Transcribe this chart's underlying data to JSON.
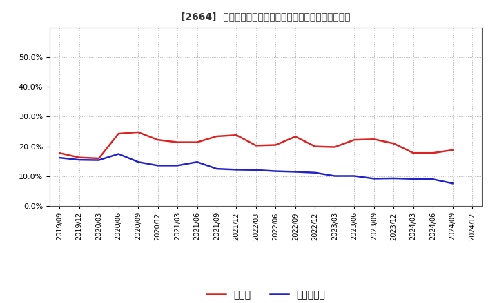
{
  "title": "[2664]  現須金、有利子負債の総資産に対する比率の推移",
  "x_labels": [
    "2019/09",
    "2019/12",
    "2020/03",
    "2020/06",
    "2020/09",
    "2020/12",
    "2021/03",
    "2021/06",
    "2021/09",
    "2021/12",
    "2022/03",
    "2022/06",
    "2022/09",
    "2022/12",
    "2023/03",
    "2023/06",
    "2023/09",
    "2023/12",
    "2024/03",
    "2024/06",
    "2024/09",
    "2024/12"
  ],
  "cash_ratio": [
    0.178,
    0.163,
    0.16,
    0.243,
    0.248,
    0.222,
    0.214,
    0.214,
    0.234,
    0.238,
    0.203,
    0.205,
    0.233,
    0.2,
    0.198,
    0.222,
    0.224,
    0.21,
    0.178,
    0.178,
    0.188,
    null
  ],
  "debt_ratio": [
    0.162,
    0.155,
    0.154,
    0.175,
    0.148,
    0.136,
    0.136,
    0.148,
    0.125,
    0.122,
    0.121,
    0.117,
    0.115,
    0.112,
    0.101,
    0.101,
    0.092,
    0.093,
    0.091,
    0.09,
    0.076,
    null
  ],
  "line_color_cash": "#dd2222",
  "line_color_debt": "#2222cc",
  "background_color": "#ffffff",
  "grid_color": "#aaaaaa",
  "ylim": [
    0.0,
    0.6
  ],
  "yticks": [
    0.0,
    0.1,
    0.2,
    0.3,
    0.4,
    0.5
  ],
  "legend_cash": "現須金",
  "legend_debt": "有利子負債"
}
